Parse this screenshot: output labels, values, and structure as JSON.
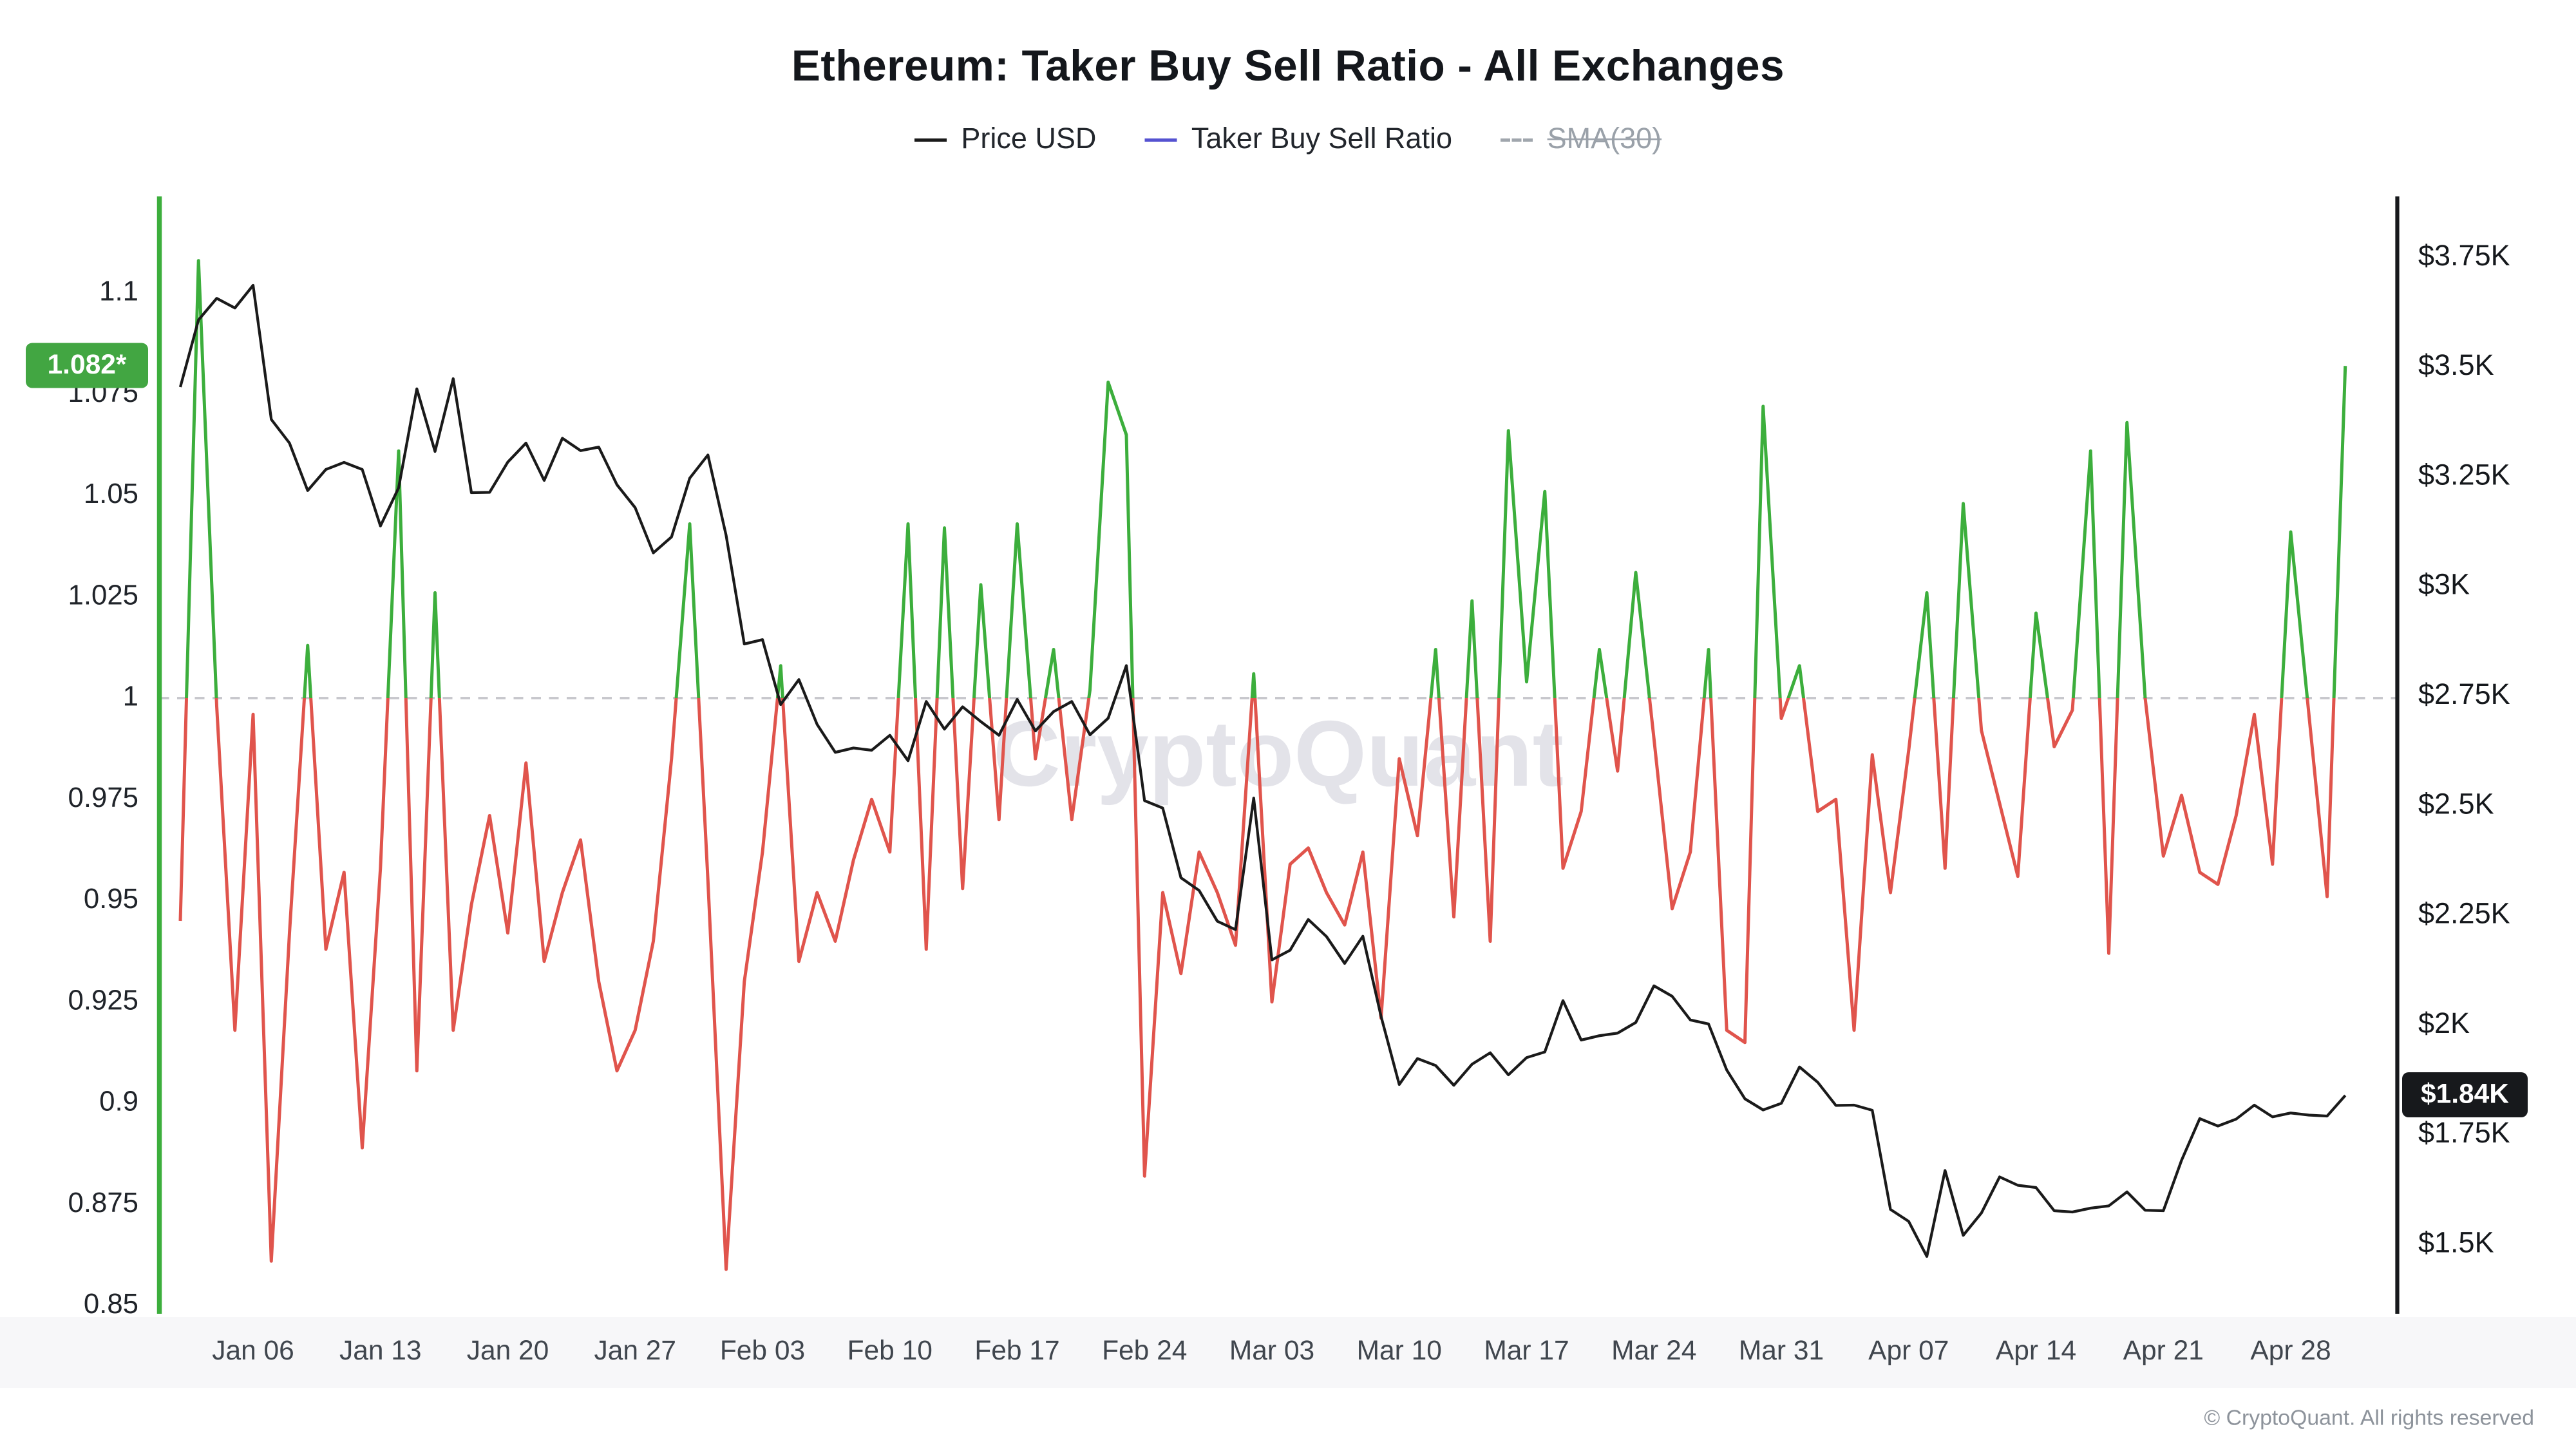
{
  "title": "Ethereum: Taker Buy Sell Ratio - All Exchanges",
  "watermark": "CryptoQuant",
  "footer": "© CryptoQuant. All rights reserved",
  "legend": {
    "items": [
      {
        "label": "Price USD",
        "color": "#1a1a1a",
        "dashed": false,
        "active": true
      },
      {
        "label": "Taker Buy Sell Ratio",
        "color": "#5552d1",
        "dashed": false,
        "active": true
      },
      {
        "label": "SMA(30)",
        "color": "#a0a6ad",
        "dashed": true,
        "active": false
      }
    ]
  },
  "badges": {
    "left": {
      "text": "1.082*",
      "value": 1.082,
      "color": "#42a642"
    },
    "right": {
      "text": "$1.84K",
      "value": 1840,
      "color": "#17191c"
    }
  },
  "colors": {
    "ratio_up": "#3cae3c",
    "ratio_down": "#e0544c",
    "price": "#1a1a1a",
    "axis_left_spine": "#3cae3c",
    "axis_right_spine": "#17191c",
    "baseline_dash": "#c6c6cb",
    "watermark": "#e3e3e9",
    "x_band": "#f7f7f9"
  },
  "chart_data": {
    "type": "line",
    "title": "Ethereum: Taker Buy Sell Ratio - All Exchanges",
    "legend_position": "top",
    "grid": "horizontal dashed baseline at ratio = 1 only",
    "baseline": 1,
    "x": [
      "Jan 02",
      "Jan 03",
      "Jan 04",
      "Jan 05",
      "Jan 06",
      "Jan 07",
      "Jan 08",
      "Jan 09",
      "Jan 10",
      "Jan 11",
      "Jan 12",
      "Jan 13",
      "Jan 14",
      "Jan 15",
      "Jan 16",
      "Jan 17",
      "Jan 18",
      "Jan 19",
      "Jan 20",
      "Jan 21",
      "Jan 22",
      "Jan 23",
      "Jan 24",
      "Jan 25",
      "Jan 26",
      "Jan 27",
      "Jan 28",
      "Jan 29",
      "Jan 30",
      "Jan 31",
      "Feb 01",
      "Feb 02",
      "Feb 03",
      "Feb 04",
      "Feb 05",
      "Feb 06",
      "Feb 07",
      "Feb 08",
      "Feb 09",
      "Feb 10",
      "Feb 11",
      "Feb 12",
      "Feb 13",
      "Feb 14",
      "Feb 15",
      "Feb 16",
      "Feb 17",
      "Feb 18",
      "Feb 19",
      "Feb 20",
      "Feb 21",
      "Feb 22",
      "Feb 23",
      "Feb 24",
      "Feb 25",
      "Feb 26",
      "Feb 27",
      "Feb 28",
      "Mar 01",
      "Mar 02",
      "Mar 03",
      "Mar 04",
      "Mar 05",
      "Mar 06",
      "Mar 07",
      "Mar 08",
      "Mar 09",
      "Mar 10",
      "Mar 11",
      "Mar 12",
      "Mar 13",
      "Mar 14",
      "Mar 15",
      "Mar 16",
      "Mar 17",
      "Mar 18",
      "Mar 19",
      "Mar 20",
      "Mar 21",
      "Mar 22",
      "Mar 23",
      "Mar 24",
      "Mar 25",
      "Mar 26",
      "Mar 27",
      "Mar 28",
      "Mar 29",
      "Mar 30",
      "Mar 31",
      "Apr 01",
      "Apr 02",
      "Apr 03",
      "Apr 04",
      "Apr 05",
      "Apr 06",
      "Apr 07",
      "Apr 08",
      "Apr 09",
      "Apr 10",
      "Apr 11",
      "Apr 12",
      "Apr 13",
      "Apr 14",
      "Apr 15",
      "Apr 16",
      "Apr 17",
      "Apr 18",
      "Apr 19",
      "Apr 20",
      "Apr 21",
      "Apr 22",
      "Apr 23",
      "Apr 24",
      "Apr 25",
      "Apr 26",
      "Apr 27",
      "Apr 28",
      "Apr 29",
      "Apr 30",
      "May 01"
    ],
    "x_tick_labels": [
      "Jan 06",
      "Jan 13",
      "Jan 20",
      "Jan 27",
      "Feb 03",
      "Feb 10",
      "Feb 17",
      "Feb 24",
      "Mar 03",
      "Mar 10",
      "Mar 17",
      "Mar 24",
      "Mar 31",
      "Apr 07",
      "Apr 14",
      "Apr 21",
      "Apr 28"
    ],
    "series": [
      {
        "name": "Price USD",
        "axis": "right",
        "color": "#1a1a1a",
        "visible": true,
        "values": [
          3455,
          3608,
          3657,
          3635,
          3687,
          3381,
          3327,
          3219,
          3267,
          3283,
          3267,
          3138,
          3225,
          3451,
          3308,
          3474,
          3214,
          3215,
          3284,
          3327,
          3242,
          3338,
          3310,
          3318,
          3232,
          3180,
          3077,
          3113,
          3247,
          3300,
          3117,
          2869,
          2879,
          2731,
          2788,
          2686,
          2622,
          2632,
          2627,
          2661,
          2603,
          2738,
          2675,
          2726,
          2692,
          2661,
          2743,
          2671,
          2715,
          2738,
          2662,
          2700,
          2820,
          2512,
          2495,
          2336,
          2307,
          2237,
          2218,
          2518,
          2149,
          2171,
          2241,
          2202,
          2141,
          2203,
          2020,
          1865,
          1924,
          1908,
          1863,
          1911,
          1937,
          1887,
          1926,
          1939,
          2056,
          1966,
          1976,
          1982,
          2006,
          2090,
          2066,
          2012,
          2003,
          1898,
          1832,
          1807,
          1822,
          1905,
          1870,
          1817,
          1818,
          1806,
          1580,
          1553,
          1473,
          1669,
          1521,
          1572,
          1654,
          1635,
          1630,
          1577,
          1574,
          1583,
          1588,
          1620,
          1578,
          1577,
          1692,
          1787,
          1770,
          1786,
          1818,
          1791,
          1800,
          1795,
          1793,
          1840
        ]
      },
      {
        "name": "Taker Buy Sell Ratio",
        "axis": "left",
        "color_up": "#3cae3c",
        "color_down": "#e0544c",
        "baseline": 1,
        "visible": true,
        "last_value": 1.082,
        "values": [
          0.945,
          1.108,
          0.998,
          0.918,
          0.996,
          0.861,
          0.942,
          1.013,
          0.938,
          0.957,
          0.889,
          0.958,
          1.061,
          0.908,
          1.026,
          0.918,
          0.949,
          0.971,
          0.942,
          0.984,
          0.935,
          0.952,
          0.965,
          0.93,
          0.908,
          0.918,
          0.94,
          0.985,
          1.043,
          0.955,
          0.859,
          0.93,
          0.962,
          1.008,
          0.935,
          0.952,
          0.94,
          0.96,
          0.975,
          0.962,
          1.043,
          0.938,
          1.042,
          0.953,
          1.028,
          0.97,
          1.043,
          0.985,
          1.012,
          0.97,
          1.002,
          1.078,
          1.065,
          0.882,
          0.952,
          0.932,
          0.962,
          0.952,
          0.939,
          1.006,
          0.925,
          0.959,
          0.963,
          0.952,
          0.944,
          0.962,
          0.921,
          0.985,
          0.966,
          1.012,
          0.946,
          1.024,
          0.94,
          1.066,
          1.004,
          1.051,
          0.958,
          0.972,
          1.012,
          0.982,
          1.031,
          0.99,
          0.948,
          0.962,
          1.012,
          0.918,
          0.915,
          1.072,
          0.995,
          1.008,
          0.972,
          0.975,
          0.918,
          0.986,
          0.952,
          0.987,
          1.026,
          0.958,
          1.048,
          0.992,
          0.974,
          0.956,
          1.021,
          0.988,
          0.997,
          1.061,
          0.937,
          1.068,
          1.0,
          0.961,
          0.976,
          0.957,
          0.954,
          0.971,
          0.996,
          0.959,
          1.041,
          0.996,
          0.951,
          1.082
        ]
      },
      {
        "name": "SMA(30)",
        "axis": "left",
        "visible": false,
        "values": []
      }
    ],
    "axes": {
      "left": {
        "min": 0.85,
        "max": 1.1,
        "ticks": [
          {
            "v": 1.1,
            "label": "1.1"
          },
          {
            "v": 1.075,
            "label": "1.075"
          },
          {
            "v": 1.05,
            "label": "1.05"
          },
          {
            "v": 1.025,
            "label": "1.025"
          },
          {
            "v": 1,
            "label": "1"
          },
          {
            "v": 0.975,
            "label": "0.975"
          },
          {
            "v": 0.95,
            "label": "0.95"
          },
          {
            "v": 0.925,
            "label": "0.925"
          },
          {
            "v": 0.9,
            "label": "0.9"
          },
          {
            "v": 0.875,
            "label": "0.875"
          },
          {
            "v": 0.85,
            "label": "0.85"
          }
        ]
      },
      "right": {
        "min": 1500,
        "max": 3750,
        "ticks": [
          {
            "v": 3750,
            "label": "$3.75K"
          },
          {
            "v": 3500,
            "label": "$3.5K"
          },
          {
            "v": 3250,
            "label": "$3.25K"
          },
          {
            "v": 3000,
            "label": "$3K"
          },
          {
            "v": 2750,
            "label": "$2.75K"
          },
          {
            "v": 2500,
            "label": "$2.5K"
          },
          {
            "v": 2250,
            "label": "$2.25K"
          },
          {
            "v": 2000,
            "label": "$2K"
          },
          {
            "v": 1750,
            "label": "$1.75K"
          },
          {
            "v": 1500,
            "label": "$1.5K"
          }
        ]
      }
    }
  }
}
